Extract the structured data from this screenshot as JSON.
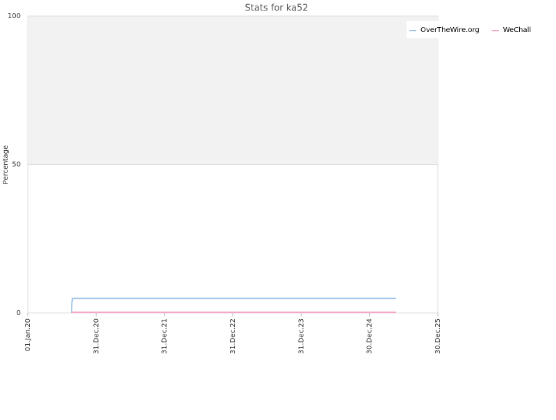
{
  "chart_data": {
    "type": "line",
    "title": "Stats for ka52",
    "y_label": "Percentage",
    "xlim": [
      "2020-01-01",
      "2025-12-30"
    ],
    "xticks": [
      {
        "value": "2020-01-01",
        "label": "01.Jan.20"
      },
      {
        "value": "2020-12-31",
        "label": "31.Dec.20"
      },
      {
        "value": "2021-12-31",
        "label": "31.Dec.21"
      },
      {
        "value": "2022-12-31",
        "label": "31.Dec.22"
      },
      {
        "value": "2023-12-31",
        "label": "31.Dec.23"
      },
      {
        "value": "2024-12-30",
        "label": "30.Dec.24"
      },
      {
        "value": "2025-12-30",
        "label": "30.Dec.25"
      }
    ],
    "ylim": [
      0,
      100
    ],
    "yticks": [
      0,
      50,
      100
    ],
    "shaded_band": [
      50,
      100
    ],
    "legend": "top-right",
    "series": [
      {
        "name": "OverTheWire.org",
        "color": "#9fc5e8",
        "x": [
          "2020-08-22",
          "2020-08-23",
          "2020-08-27",
          "2025-05-21"
        ],
        "values": [
          0,
          3.3,
          4.9,
          4.9
        ]
      },
      {
        "name": "WeChall",
        "color": "#f4a7c8",
        "x": [
          "2020-08-22",
          "2025-05-21"
        ],
        "values": [
          0.2,
          0.2
        ]
      }
    ]
  }
}
